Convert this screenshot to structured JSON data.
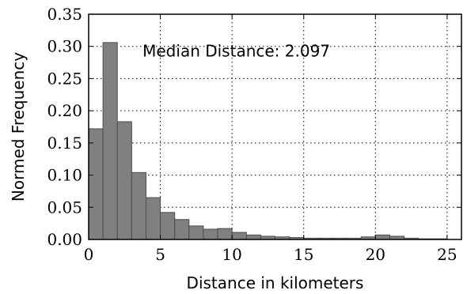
{
  "chart_data": {
    "type": "bar",
    "xlabel": "Distance in kilometers",
    "ylabel": "Normed Frequency",
    "xlim": [
      0,
      26
    ],
    "ylim": [
      0,
      0.35
    ],
    "xticks": [
      "0",
      "5",
      "10",
      "15",
      "20",
      "25"
    ],
    "xtick_values": [
      0,
      5,
      10,
      15,
      20,
      25
    ],
    "yticks": [
      "0.00",
      "0.05",
      "0.10",
      "0.15",
      "0.20",
      "0.25",
      "0.30",
      "0.35"
    ],
    "ytick_values": [
      0,
      0.05,
      0.1,
      0.15,
      0.2,
      0.25,
      0.3,
      0.35
    ],
    "grid": true,
    "bin_width": 1,
    "bin_start": 0,
    "values": [
      0.172,
      0.306,
      0.183,
      0.104,
      0.065,
      0.042,
      0.031,
      0.021,
      0.016,
      0.017,
      0.011,
      0.007,
      0.005,
      0.004,
      0.003,
      0.002,
      0.002,
      0.002,
      0.002,
      0.004,
      0.007,
      0.005,
      0.002,
      0.001,
      0.001
    ],
    "bar_color": "#808080",
    "annotation": "Median Distance: 2.097"
  }
}
